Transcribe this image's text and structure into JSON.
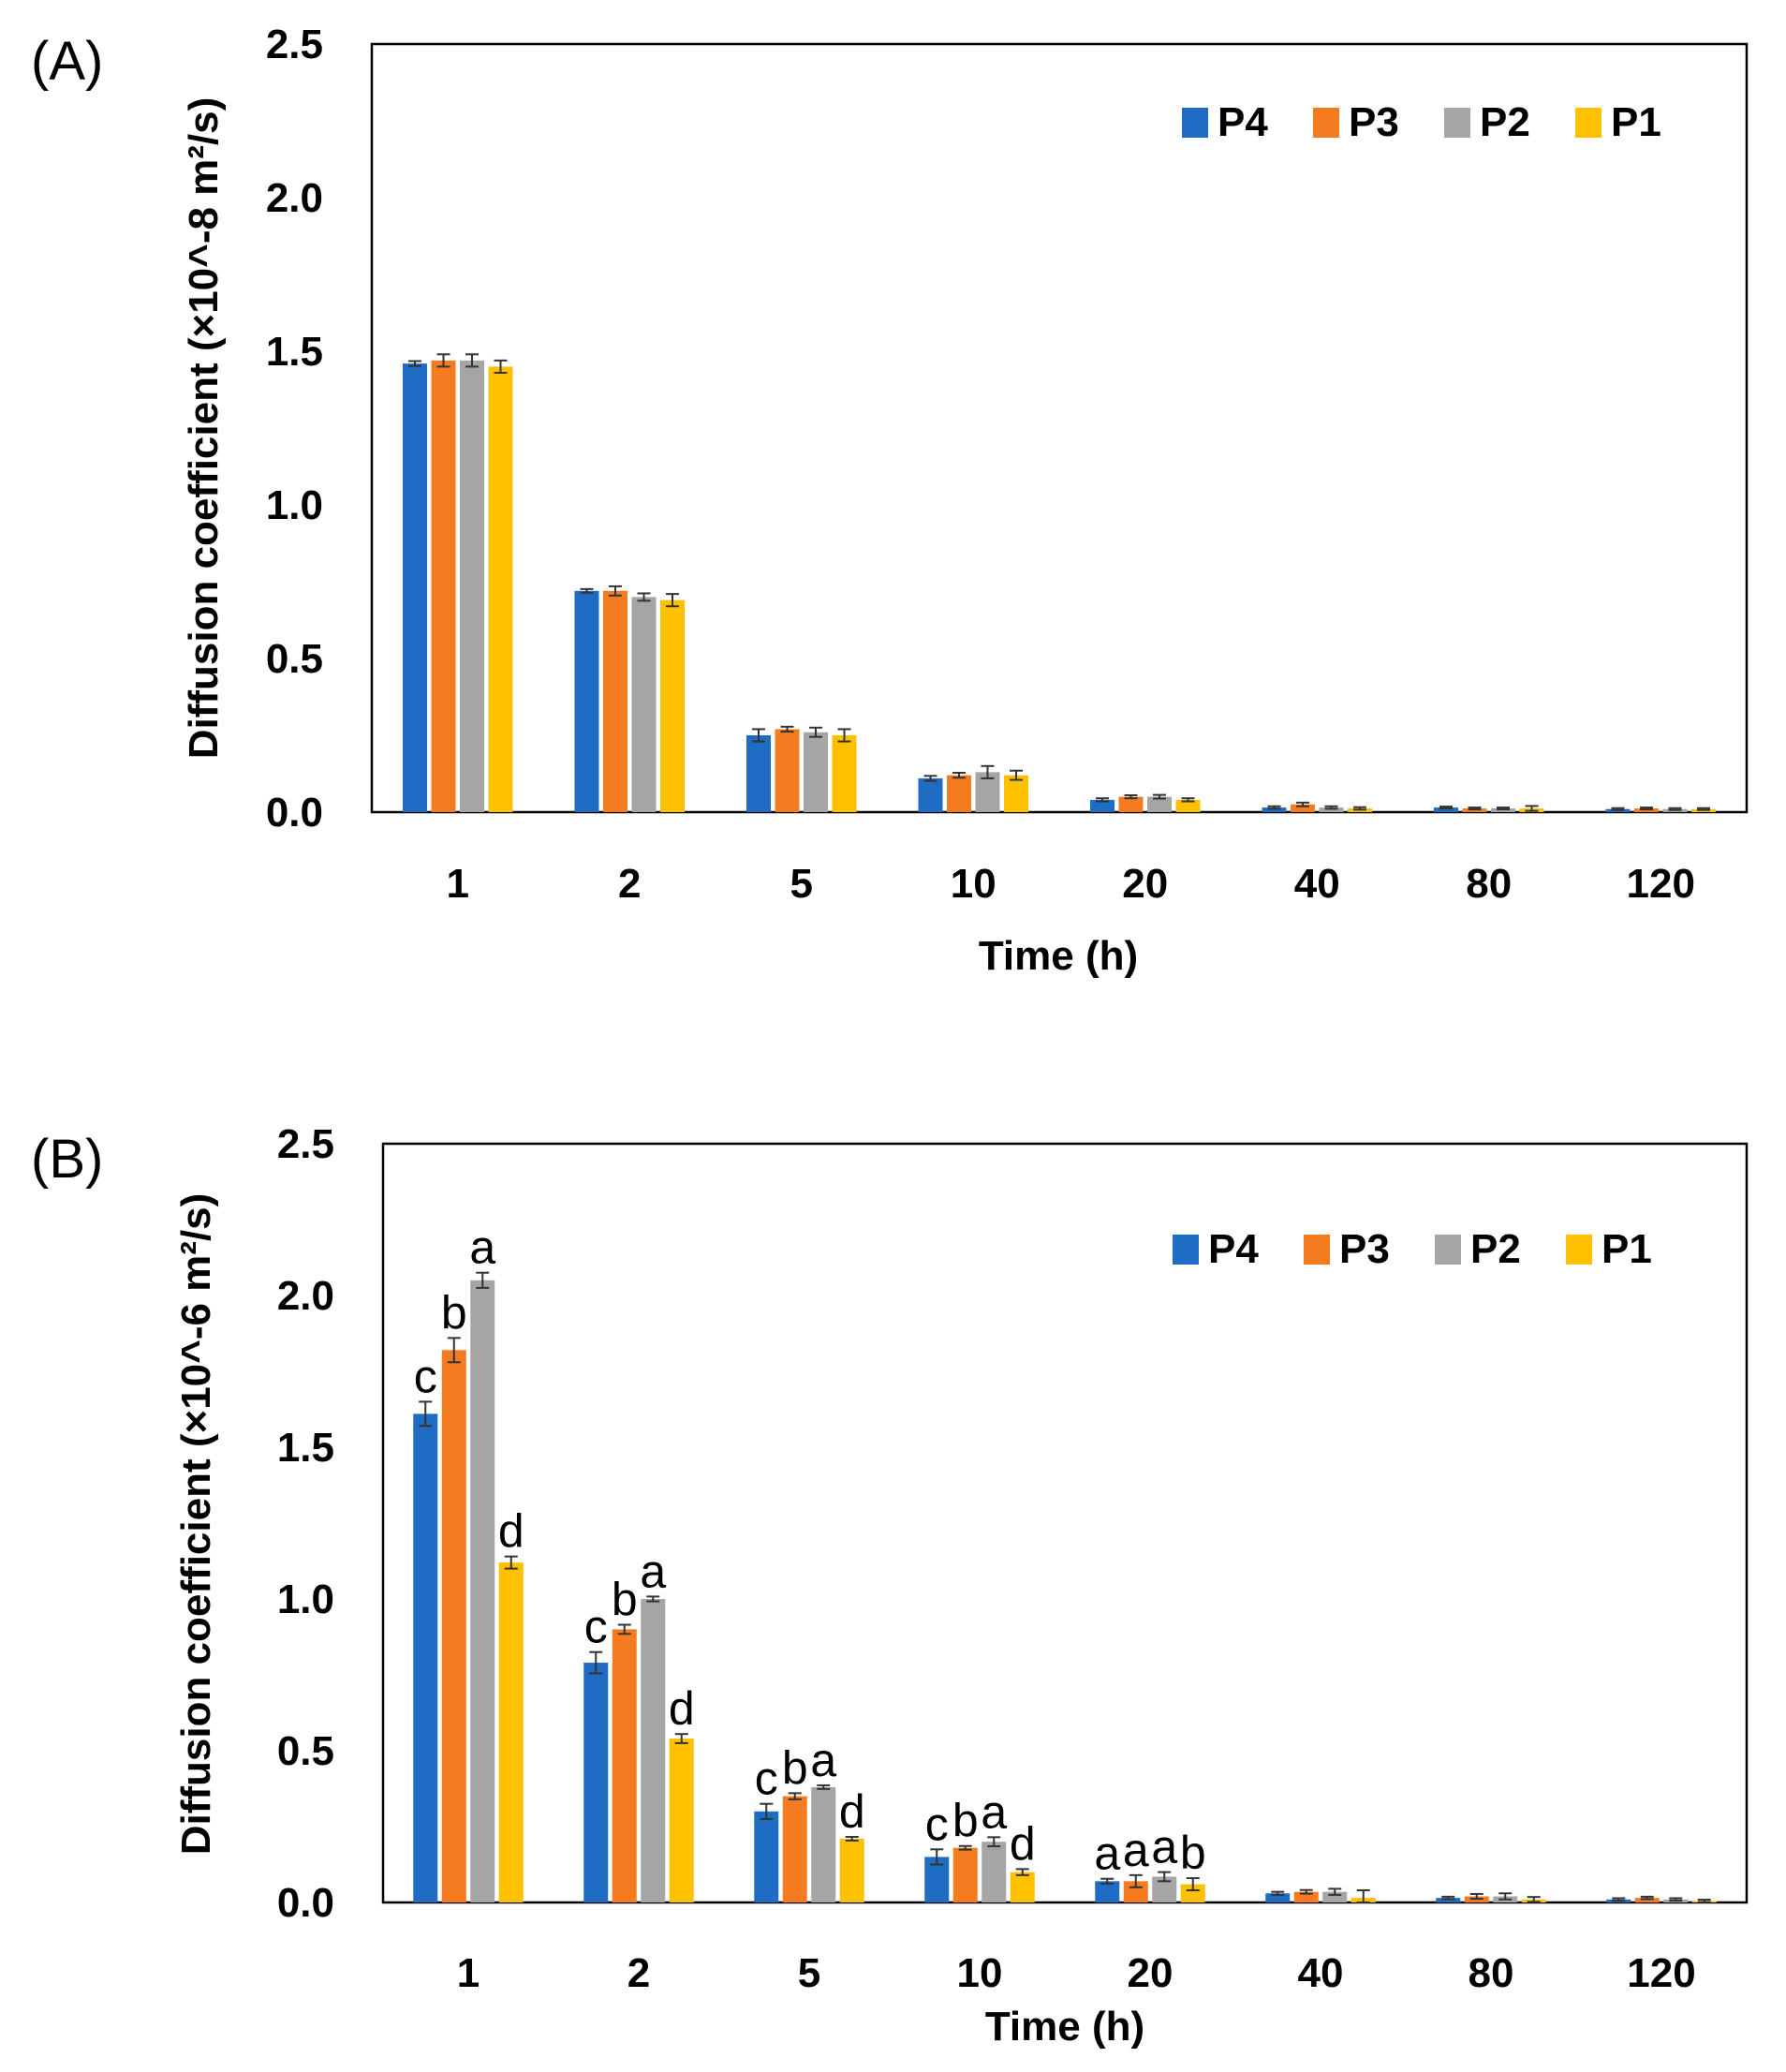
{
  "chart_data": [
    {
      "type": "bar",
      "panel_label": "(A)",
      "categories": [
        "1",
        "2",
        "5",
        "10",
        "20",
        "40",
        "80",
        "120"
      ],
      "xlabel": "Time (h)",
      "ylabel": "Diffusion coefficient (×10^-8  m²/s)",
      "ylim": [
        0,
        2.5
      ],
      "yticks": [
        "0.0",
        "0.5",
        "1.0",
        "1.5",
        "2.0",
        "2.5"
      ],
      "legend_position": "top-right",
      "series": [
        {
          "name": "P4",
          "color": "#1f6cc4",
          "values": [
            1.46,
            0.72,
            0.25,
            0.11,
            0.04,
            0.015,
            0.015,
            0.01
          ],
          "errors": [
            0.008,
            0.006,
            0.02,
            0.008,
            0.005,
            0.004,
            0.003,
            0.003
          ]
        },
        {
          "name": "P3",
          "color": "#f47b20",
          "values": [
            1.47,
            0.72,
            0.27,
            0.12,
            0.05,
            0.025,
            0.012,
            0.012
          ],
          "errors": [
            0.02,
            0.015,
            0.008,
            0.008,
            0.005,
            0.006,
            0.003,
            0.003
          ]
        },
        {
          "name": "P2",
          "color": "#a5a5a5",
          "values": [
            1.47,
            0.7,
            0.26,
            0.13,
            0.05,
            0.015,
            0.012,
            0.01
          ],
          "errors": [
            0.02,
            0.012,
            0.015,
            0.02,
            0.006,
            0.004,
            0.003,
            0.003
          ]
        },
        {
          "name": "P1",
          "color": "#ffc000",
          "values": [
            1.45,
            0.69,
            0.25,
            0.12,
            0.04,
            0.012,
            0.012,
            0.01
          ],
          "errors": [
            0.02,
            0.02,
            0.02,
            0.015,
            0.005,
            0.004,
            0.008,
            0.003
          ]
        }
      ],
      "annotations": []
    },
    {
      "type": "bar",
      "panel_label": "(B)",
      "categories": [
        "1",
        "2",
        "5",
        "10",
        "20",
        "40",
        "80",
        "120"
      ],
      "xlabel": "Time (h)",
      "ylabel": "Diffusion coefficient (×10^-6  m²/s)",
      "ylim": [
        0,
        2.5
      ],
      "yticks": [
        "0.0",
        "0.5",
        "1.0",
        "1.5",
        "2.0",
        "2.5"
      ],
      "legend_position": "top-right",
      "series": [
        {
          "name": "P4",
          "color": "#1f6cc4",
          "values": [
            1.61,
            0.79,
            0.3,
            0.15,
            0.07,
            0.03,
            0.015,
            0.01
          ],
          "errors": [
            0.04,
            0.035,
            0.025,
            0.025,
            0.008,
            0.005,
            0.004,
            0.004
          ]
        },
        {
          "name": "P3",
          "color": "#f47b20",
          "values": [
            1.82,
            0.9,
            0.35,
            0.18,
            0.07,
            0.035,
            0.02,
            0.015
          ],
          "errors": [
            0.04,
            0.015,
            0.01,
            0.006,
            0.02,
            0.006,
            0.008,
            0.004
          ]
        },
        {
          "name": "P2",
          "color": "#a5a5a5",
          "values": [
            2.05,
            1.0,
            0.38,
            0.2,
            0.085,
            0.035,
            0.02,
            0.01
          ],
          "errors": [
            0.025,
            0.008,
            0.006,
            0.015,
            0.015,
            0.01,
            0.01,
            0.004
          ]
        },
        {
          "name": "P1",
          "color": "#ffc000",
          "values": [
            1.12,
            0.54,
            0.21,
            0.1,
            0.06,
            0.015,
            0.01,
            0.005
          ],
          "errors": [
            0.02,
            0.015,
            0.006,
            0.01,
            0.02,
            0.025,
            0.008,
            0.004
          ]
        }
      ],
      "annotations": [
        [
          "c",
          "b",
          "a",
          "d"
        ],
        [
          "c",
          "b",
          "a",
          "d"
        ],
        [
          "c",
          "b",
          "a",
          "d"
        ],
        [
          "c",
          "b",
          "a",
          "d"
        ],
        [
          "a",
          "a",
          "a",
          "b"
        ],
        [
          "",
          "",
          "",
          ""
        ],
        [
          "",
          "",
          "",
          ""
        ],
        [
          "",
          "",
          "",
          ""
        ]
      ]
    }
  ]
}
